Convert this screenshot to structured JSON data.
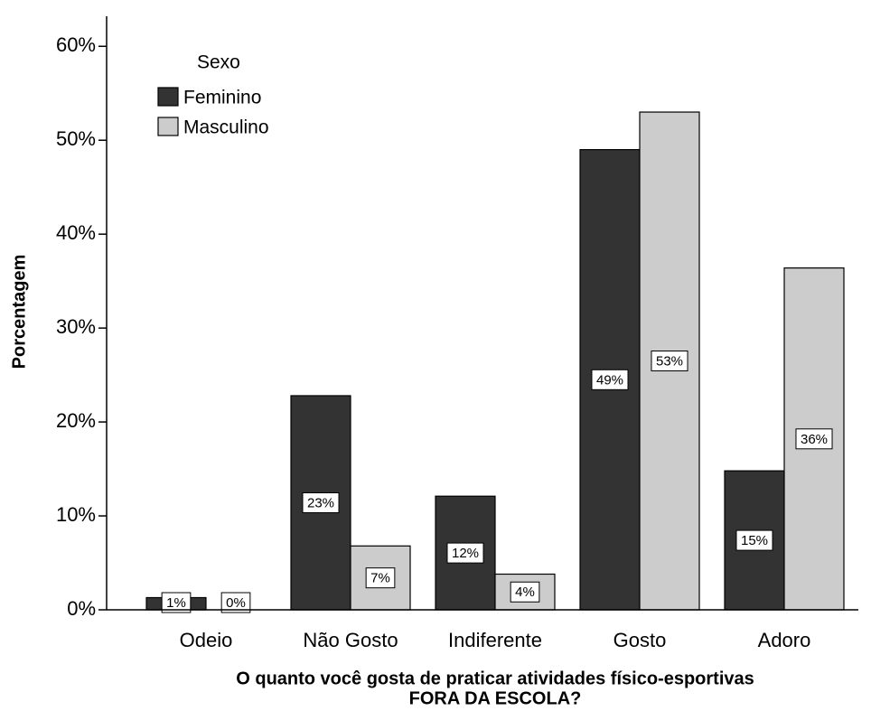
{
  "chart_data": {
    "type": "bar",
    "categories": [
      "Odeio",
      "Não Gosto",
      "Indiferente",
      "Gosto",
      "Adoro"
    ],
    "series": [
      {
        "name": "Feminino",
        "color": "#333333",
        "values": [
          1.3,
          22.8,
          12.1,
          49,
          14.8
        ],
        "value_labels": [
          "1%",
          "23%",
          "12%",
          "49%",
          "15%"
        ]
      },
      {
        "name": "Masculino",
        "color": "#cccccc",
        "values": [
          0,
          6.8,
          3.8,
          53,
          36.4
        ],
        "value_labels": [
          "0%",
          "7%",
          "4%",
          "53%",
          "36%"
        ]
      }
    ],
    "legend_title": "Sexo",
    "legend": "upper left",
    "ylabel": "Porcentagem",
    "xlabel": [
      "O quanto você gosta de praticar atividades físico-esportivas",
      "FORA DA ESCOLA?"
    ],
    "ylim": [
      0,
      63.2
    ],
    "yticks": [
      {
        "value": 0,
        "label": "0%"
      },
      {
        "value": 10,
        "label": "10%"
      },
      {
        "value": 20,
        "label": "20%"
      },
      {
        "value": 30,
        "label": "30%"
      },
      {
        "value": 40,
        "label": "40%"
      },
      {
        "value": 50,
        "label": "50%"
      },
      {
        "value": 60,
        "label": "60%"
      }
    ]
  }
}
